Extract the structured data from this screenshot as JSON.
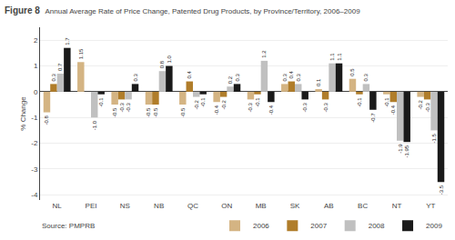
{
  "chart_data": {
    "type": "bar",
    "title": "Figure 8",
    "subtitle": "Annual Average Rate of Price Change, Patented Drug Products, by Province/Territory, 2006–2009",
    "ylabel": "% Change",
    "annotations": [
      "Source: PMPRB"
    ],
    "categories": [
      "NL",
      "PEI",
      "NS",
      "NB",
      "QC",
      "ON",
      "MB",
      "SK",
      "AB",
      "BC",
      "NT",
      "YT"
    ],
    "series": [
      {
        "name": "2006",
        "color": "#d4b483",
        "values": [
          -0.8,
          1.15,
          -0.5,
          -0.5,
          -0.5,
          -0.4,
          -0.3,
          0.3,
          0.1,
          0.5,
          -0.1,
          -0.2
        ],
        "value_labels": [
          "-0.8",
          "1.15",
          "-0.5",
          "-0.5",
          "-0.5",
          "-0.4",
          "-0.3",
          "0.3",
          "0.1",
          "0.5",
          "-0.1",
          "-0.2"
        ]
      },
      {
        "name": "2007",
        "color": "#b07d2a",
        "values": [
          0.3,
          0.0,
          -0.3,
          -0.5,
          0.4,
          -0.2,
          -0.1,
          0.4,
          -0.3,
          -0.1,
          -0.4,
          -0.3
        ],
        "value_labels": [
          "0.3",
          null,
          "-0.3",
          "-0.5",
          "0.4",
          "-0.2",
          "-0.1",
          "0.4",
          "-0.3",
          "-0.1",
          "-0.4",
          "-0.3"
        ]
      },
      {
        "name": "2008",
        "color": "#c0c0c0",
        "values": [
          0.7,
          -1.0,
          -0.3,
          0.8,
          -0.2,
          0.2,
          1.2,
          0.3,
          1.1,
          0.3,
          -1.9,
          -1.5
        ],
        "value_labels": [
          "0.7",
          "-1.0",
          "-0.3",
          "0.8",
          "-0.2",
          "0.2",
          "1.2",
          "0.3",
          "1.1",
          "0.3",
          "-1.9",
          "-1.5"
        ]
      },
      {
        "name": "2009",
        "color": "#1a1a1a",
        "values": [
          1.7,
          -0.1,
          0.3,
          1.0,
          -0.1,
          0.3,
          -0.4,
          -0.3,
          1.1,
          -0.7,
          -1.95,
          -3.5
        ],
        "value_labels": [
          "1.7",
          "-0.1",
          "0.3",
          "1.0",
          "-0.1",
          "0.3",
          "-0.4",
          "-0.3",
          "1.1",
          "-0.7",
          "-1.95",
          "-3.5"
        ]
      }
    ],
    "ylim": [
      -4.2,
      2.5
    ],
    "yticks": [
      -4,
      -3,
      -2,
      -1,
      0,
      1,
      2
    ],
    "grid": true,
    "legend": "lower right",
    "data_labels": true
  }
}
